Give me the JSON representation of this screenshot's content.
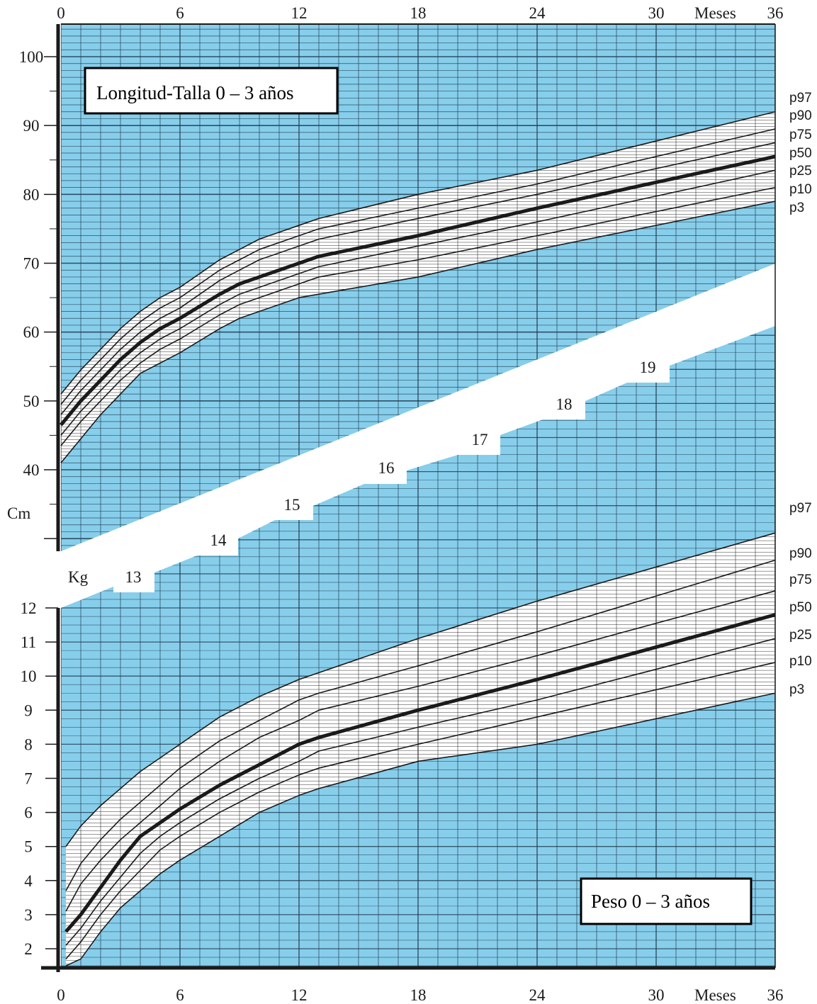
{
  "colors": {
    "panel": "#87CEEB",
    "grid_dark": "#1f3b4d",
    "grid_light": "#ffffff",
    "curve": "#1a1a1a"
  },
  "axis": {
    "month_ticks": [
      "0",
      "6",
      "12",
      "18",
      "24",
      "30",
      "36"
    ],
    "months_label": "Meses",
    "height_ticks": [
      "40",
      "50",
      "60",
      "70",
      "80",
      "90",
      "100"
    ],
    "height_unit": "Cm",
    "weight_ticks": [
      "2",
      "3",
      "4",
      "5",
      "6",
      "7",
      "8",
      "9",
      "10",
      "11",
      "12"
    ],
    "weight_unit": "Kg",
    "extension_ticks": [
      "13",
      "14",
      "15",
      "16",
      "17",
      "18",
      "19"
    ]
  },
  "percentile_labels": [
    "p97",
    "p90",
    "p75",
    "p50",
    "p25",
    "p10",
    "p3"
  ],
  "chart_data": [
    {
      "type": "line",
      "title": "Longitud-Talla 0 – 3 años",
      "xlabel": "Meses",
      "ylabel": "Cm",
      "xlim": [
        0,
        36
      ],
      "ylim": [
        28,
        105
      ],
      "x": [
        0,
        1,
        2,
        3,
        4,
        5,
        6,
        8,
        9,
        10,
        12,
        13,
        18,
        24,
        36
      ],
      "series": [
        {
          "name": "p97",
          "values": [
            51,
            54.5,
            57.5,
            60.5,
            63,
            65,
            66.5,
            70.5,
            72,
            73.5,
            75.5,
            76.5,
            80,
            83.5,
            92
          ]
        },
        {
          "name": "p90",
          "values": [
            49.5,
            53,
            56,
            59,
            61.5,
            63.5,
            65,
            69,
            70.5,
            72,
            74,
            75,
            78,
            81.5,
            89.5
          ]
        },
        {
          "name": "p75",
          "values": [
            48,
            51.5,
            54.5,
            57.5,
            60,
            62,
            63.5,
            67.5,
            69,
            70.5,
            72.5,
            73.5,
            76.5,
            80,
            87.5
          ]
        },
        {
          "name": "p50",
          "values": [
            46.5,
            50,
            53,
            56,
            58.5,
            60.5,
            62,
            65.5,
            67,
            68,
            70,
            71,
            74,
            78,
            85.5
          ]
        },
        {
          "name": "p25",
          "values": [
            45,
            48.5,
            51.5,
            54.5,
            57,
            59,
            60.5,
            64,
            65.5,
            66.5,
            68.5,
            69.5,
            72.5,
            76,
            83.5
          ]
        },
        {
          "name": "p10",
          "values": [
            43.5,
            47,
            50,
            53,
            55.5,
            57.5,
            59,
            62.5,
            64,
            65,
            67,
            68,
            70.5,
            74,
            81
          ]
        },
        {
          "name": "p3",
          "values": [
            41,
            44.5,
            48,
            51,
            54,
            55.5,
            57,
            60.5,
            62,
            63,
            65,
            65.5,
            68,
            72,
            79
          ]
        }
      ]
    },
    {
      "type": "line",
      "title": "Peso 0 – 3 años",
      "xlabel": "Meses",
      "ylabel": "Kg",
      "xlim": [
        0,
        36
      ],
      "ylim": [
        1.5,
        12
      ],
      "x": [
        0.25,
        1,
        2,
        3,
        4,
        5,
        6,
        8,
        10,
        12,
        13,
        18,
        24,
        36
      ],
      "series": [
        {
          "name": "p97",
          "values": [
            5,
            5.6,
            6.2,
            6.7,
            7.2,
            7.6,
            8.0,
            8.8,
            9.4,
            9.9,
            10.1,
            11.1,
            12.2,
            14.2
          ]
        },
        {
          "name": "p90",
          "values": [
            3.7,
            4.5,
            5.2,
            5.8,
            6.3,
            6.8,
            7.3,
            8.1,
            8.7,
            9.3,
            9.5,
            10.3,
            11.3,
            13.4
          ]
        },
        {
          "name": "p75",
          "values": [
            3.1,
            3.9,
            4.6,
            5.2,
            5.7,
            6.2,
            6.7,
            7.5,
            8.2,
            8.7,
            9.0,
            9.7,
            10.6,
            12.5
          ]
        },
        {
          "name": "p50",
          "values": [
            2.5,
            3.0,
            3.8,
            4.6,
            5.3,
            5.7,
            6.1,
            6.8,
            7.4,
            8.0,
            8.2,
            9.0,
            9.9,
            11.8
          ]
        },
        {
          "name": "p25",
          "values": [
            2.1,
            2.6,
            3.4,
            4.1,
            4.8,
            5.3,
            5.7,
            6.4,
            7.0,
            7.5,
            7.8,
            8.5,
            9.3,
            11.1
          ]
        },
        {
          "name": "p10",
          "values": [
            1.7,
            2.2,
            3.0,
            3.7,
            4.3,
            4.9,
            5.3,
            6.0,
            6.6,
            7.1,
            7.3,
            8.0,
            8.8,
            10.4
          ]
        },
        {
          "name": "p3",
          "values": [
            1.5,
            1.7,
            2.5,
            3.2,
            3.7,
            4.2,
            4.6,
            5.3,
            6.0,
            6.5,
            6.7,
            7.5,
            8.0,
            9.5
          ]
        }
      ]
    }
  ]
}
